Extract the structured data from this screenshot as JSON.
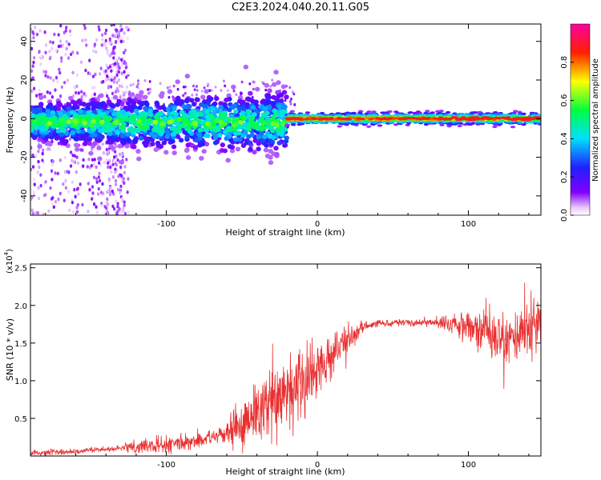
{
  "title": "C2E3.2024.040.20.11.G05",
  "chart_data": [
    {
      "type": "heatmap",
      "title": "C2E3.2024.040.20.11.G05",
      "xlabel": "Height of straight line (km)",
      "ylabel": "Frequency (Hz)",
      "xlim": [
        -190,
        148
      ],
      "ylim": [
        -50,
        49
      ],
      "xticks": [
        -100,
        0,
        100
      ],
      "yticks": [
        -40,
        -20,
        0,
        20,
        40
      ],
      "colorbar": {
        "label": "Normalized spectral amplitude",
        "range": [
          0.0,
          1.0
        ],
        "ticks": [
          "0.0",
          "0.2",
          "0.4",
          "0.6",
          "0.8"
        ],
        "colormap": "rainbow (white-violet-blue-cyan-green-yellow-red-magenta)"
      },
      "features": {
        "noisy_band": {
          "x": [
            -190,
            -20
          ],
          "freq_center": -2,
          "freq_halfwidth": 8
        },
        "coherent_band": {
          "x": [
            -20,
            148
          ],
          "freq_center": 0,
          "freq_halfwidth": 3
        },
        "scattered_low_amplitude_region": {
          "x": [
            -190,
            -125
          ],
          "freq_range": [
            -50,
            48
          ]
        }
      }
    },
    {
      "type": "line",
      "xlabel": "Height of straight line (km)",
      "ylabel": "SNR (10 * v/v)",
      "y_scale_label": "(x10",
      "y_scale_exponent": "4",
      "xlim": [
        -190,
        148
      ],
      "ylim": [
        0,
        2.55
      ],
      "xticks": [
        -100,
        0,
        100
      ],
      "yticks": [
        "0.5",
        "1.0",
        "1.5",
        "2.0",
        "2.5"
      ],
      "color": "#e83030",
      "envelope": {
        "x": [
          -190,
          -160,
          -140,
          -120,
          -100,
          -80,
          -60,
          -50,
          -40,
          -30,
          -20,
          -10,
          0,
          10,
          20,
          30,
          40,
          60,
          80,
          90,
          100,
          110,
          120,
          130,
          140,
          148
        ],
        "y": [
          0.04,
          0.06,
          0.09,
          0.12,
          0.15,
          0.2,
          0.3,
          0.42,
          0.55,
          0.7,
          0.85,
          1.0,
          1.15,
          1.35,
          1.55,
          1.7,
          1.76,
          1.78,
          1.77,
          1.76,
          1.74,
          1.68,
          1.62,
          1.6,
          1.65,
          1.7
        ]
      }
    }
  ]
}
